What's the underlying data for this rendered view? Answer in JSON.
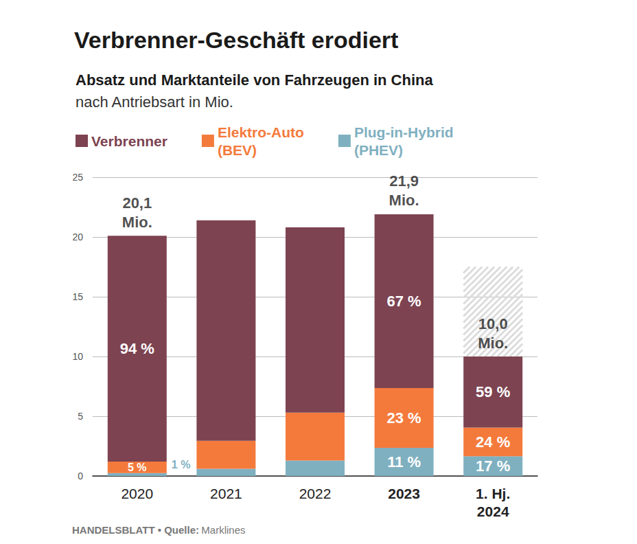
{
  "chart_data": {
    "type": "bar",
    "title": "Verbrenner-Geschäft erodiert",
    "subtitle": [
      "Absatz und Marktanteile von Fahrzeugen in China",
      "nach Antriebsart in Mio."
    ],
    "source": [
      "HANDELSBLATT • Quelle:",
      "Marklines"
    ],
    "categories": [
      "2020",
      "2021",
      "2022",
      "2023",
      "1. Hj.\n2024"
    ],
    "stacked": true,
    "grid": true,
    "legend": "top-left",
    "data_labels": true,
    "ylim": [
      0,
      25
    ],
    "yticks": [
      0,
      5,
      10,
      15,
      20,
      25
    ],
    "series": [
      {
        "name": "Verbrenner",
        "color": "#7d4351",
        "values": [
          18.9,
          18.45,
          15.5,
          14.55,
          5.95
        ],
        "shares": [
          94,
          null,
          null,
          67,
          59
        ],
        "share_labels": [
          "94 %",
          null,
          null,
          "67 %",
          "59 %"
        ]
      },
      {
        "name": "Elektro-Auto\n(BEV)",
        "color": "#f47a3c",
        "values": [
          0.95,
          2.35,
          4.0,
          5.0,
          2.4
        ],
        "shares": [
          5,
          null,
          null,
          23,
          24
        ],
        "share_labels": [
          "5 %",
          null,
          null,
          "23 %",
          "24 %"
        ]
      },
      {
        "name": "Plug-in-Hybrid\n(PHEV)",
        "color": "#7fb0c0",
        "values": [
          0.25,
          0.6,
          1.3,
          2.35,
          1.65
        ],
        "shares": [
          1,
          null,
          null,
          11,
          17
        ],
        "share_labels": [
          "1 %",
          null,
          null,
          "11 %",
          "17 %"
        ]
      }
    ],
    "totals": [
      20.1,
      null,
      null,
      21.9,
      10.0
    ],
    "total_labels": [
      "20,1\nMio.",
      null,
      null,
      "21,9\nMio.",
      "10,0\nMio."
    ],
    "hatched_range": {
      "category": "1. Hj.\n2024",
      "range": [
        10.0,
        17.5
      ]
    }
  }
}
